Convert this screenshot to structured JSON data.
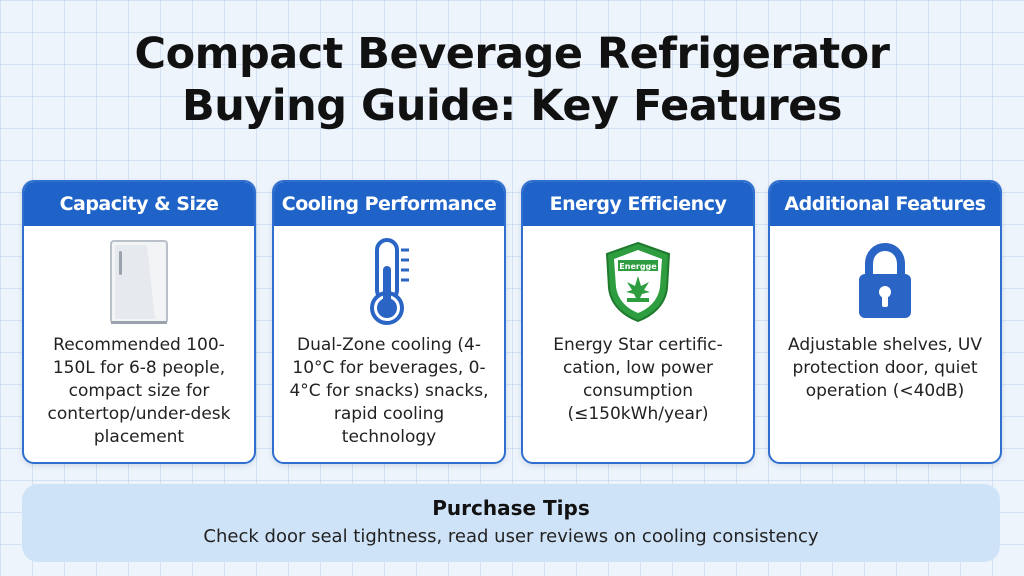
{
  "title": {
    "line1": "Compact Beverage Refrigerator",
    "line2": "Buying Guide: Key Features"
  },
  "cards": [
    {
      "header": "Capacity & Size",
      "icon": "refrigerator-icon",
      "text": "Recommended 100-150L for 6-8 people, compact size for contertop/under-desk placement"
    },
    {
      "header": "Cooling Performance",
      "icon": "thermometer-icon",
      "text": "Dual-Zone cooling (4-10°C for beverages, 0-4°C for snacks) snacks, rapid cooling technology"
    },
    {
      "header": "Energy Efficiency",
      "icon": "energy-shield-icon",
      "text": "Energy Star certific-cation, low power consumption (≤150kWh/year)",
      "badge_text": "Energge"
    },
    {
      "header": "Additional Features",
      "icon": "lock-icon",
      "text": "Adjustable shelves, UV protection door, quiet operation (<40dB)"
    }
  ],
  "tips": {
    "title": "Purchase Tips",
    "text": "Check door seal tightness, read user reviews on cooling consistency"
  },
  "colors": {
    "accent": "#1f63c9",
    "border": "#2f6fcf",
    "tips_bg": "#cfe3f8",
    "badge_green": "#2e9d3f"
  }
}
